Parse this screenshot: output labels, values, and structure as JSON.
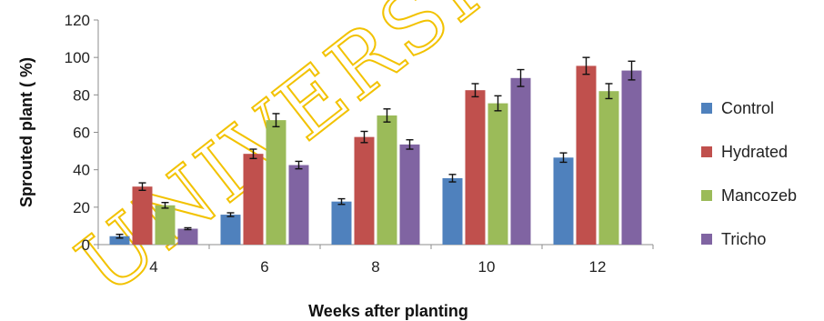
{
  "chart_data": {
    "type": "bar",
    "categories": [
      "4",
      "6",
      "8",
      "10",
      "12"
    ],
    "series": [
      {
        "name": "Control",
        "color": "#4f81bd",
        "values": [
          4.5,
          16,
          23,
          35.5,
          46.5
        ],
        "errors": [
          1,
          1,
          1.5,
          2,
          2.5
        ]
      },
      {
        "name": "Hydrated",
        "color": "#c0504d",
        "values": [
          31,
          48.5,
          57.5,
          82.5,
          95.5
        ],
        "errors": [
          2,
          2.5,
          3,
          3.5,
          4.5
        ]
      },
      {
        "name": "Mancozeb",
        "color": "#9bbb59",
        "values": [
          21,
          66.5,
          69,
          75.5,
          82
        ],
        "errors": [
          1.5,
          3.5,
          3.5,
          4,
          4
        ]
      },
      {
        "name": "Tricho",
        "color": "#8064a2",
        "values": [
          8.5,
          42.5,
          53.5,
          89,
          93
        ],
        "errors": [
          0.5,
          2,
          2.5,
          4.5,
          5
        ]
      }
    ],
    "title": "",
    "xlabel": "Weeks after planting",
    "ylabel": "Sprouted plant ( %)",
    "ylim": [
      0,
      120
    ],
    "yticks": [
      "0",
      "20",
      "40",
      "60",
      "80",
      "100",
      "120"
    ],
    "grid": false,
    "legend_position": "right",
    "error_bars": true
  },
  "watermark": {
    "text": "UNIVERSITY",
    "color": "#f2c200"
  }
}
